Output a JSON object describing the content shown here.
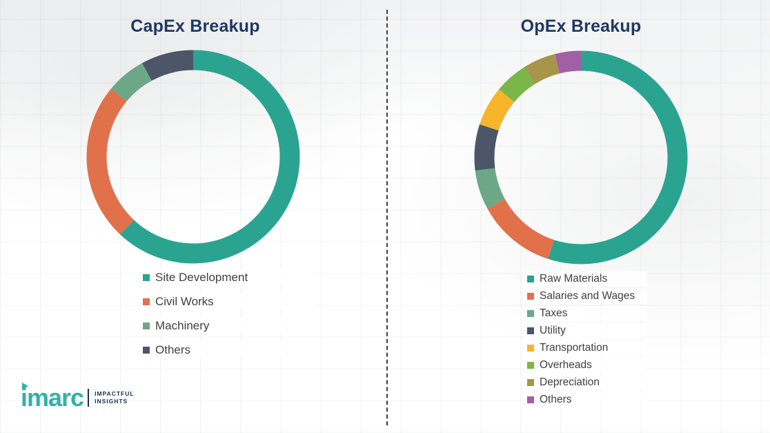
{
  "chart_data": [
    {
      "type": "donut",
      "title": "CapEx Breakup",
      "legend_position": "bottom",
      "segments": [
        {
          "label": "Site Development",
          "value": 62,
          "color": "#2AA491"
        },
        {
          "label": "Civil Works",
          "value": 24,
          "color": "#E0714B"
        },
        {
          "label": "Machinery",
          "value": 6,
          "color": "#6CA888"
        },
        {
          "label": "Others",
          "value": 8,
          "color": "#4D5668"
        }
      ]
    },
    {
      "type": "donut",
      "title": "OpEx Breakup",
      "legend_position": "bottom",
      "segments": [
        {
          "label": "Raw Materials",
          "value": 55,
          "color": "#2AA491"
        },
        {
          "label": "Salaries and Wages",
          "value": 12,
          "color": "#E0714B"
        },
        {
          "label": "Taxes",
          "value": 6,
          "color": "#6CA888"
        },
        {
          "label": "Utility",
          "value": 7,
          "color": "#4D5668"
        },
        {
          "label": "Transportation",
          "value": 6,
          "color": "#F7B52C"
        },
        {
          "label": "Overheads",
          "value": 5,
          "color": "#7AB648"
        },
        {
          "label": "Depreciation",
          "value": 5,
          "color": "#A6954B"
        },
        {
          "label": "Others",
          "value": 4,
          "color": "#A15FA6"
        }
      ]
    }
  ],
  "logo": {
    "brand": "imarc",
    "tagline": [
      "IMPACTFUL",
      "INSIGHTS"
    ]
  }
}
